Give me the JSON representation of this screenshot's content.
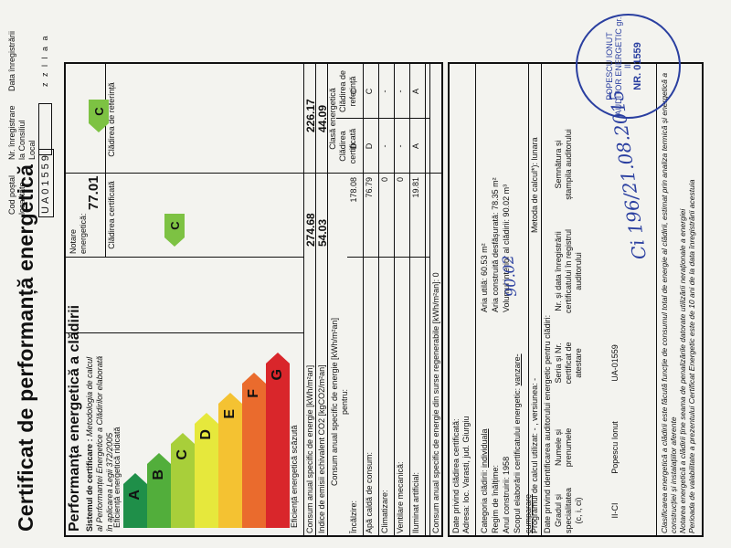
{
  "doc": {
    "title": "Certificat de performanță energetică"
  },
  "header": {
    "postal_code_label": "Cod poștal localitate",
    "registration_number_label": "Nr. înregistrare la Consiliul Local",
    "registration_date_label": "Data înregistrării",
    "postal_code_value": "UA01559",
    "date_format": "z z l l a a"
  },
  "performance": {
    "title": "Performanța energetică a clădirii",
    "system_label": "Sistemul de certificare :",
    "system_text": "Metodologia de calcul al Performanței Energetice a Clădirilor elaborată în aplicarea Legii 372/2005",
    "high_efficiency": "Eficiență energetică ridicată",
    "low_efficiency": "Eficiență energetică scăzută",
    "grade_label": "Notare energetică:",
    "grade_value": "77.01",
    "certified_col": "Clădirea certificată",
    "reference_col": "Clădirea de referință",
    "certified_class": "C",
    "reference_class": "C",
    "consumption_label": "Consum anual specific de energie  [kWh/m²an]",
    "consumption_cert": "274.68",
    "consumption_ref": "226.17",
    "co2_label": "Indice de emisii echivalent CO2    [kgCO2/m²an]",
    "co2_cert": "54.03",
    "co2_ref": "44.09",
    "classes": [
      {
        "letter": "A",
        "color": "#1f8f49"
      },
      {
        "letter": "B",
        "color": "#52ae3b"
      },
      {
        "letter": "C",
        "color": "#a8cf3a"
      },
      {
        "letter": "D",
        "color": "#e6e83c"
      },
      {
        "letter": "E",
        "color": "#f4c232"
      },
      {
        "letter": "F",
        "color": "#ea6b2d"
      },
      {
        "letter": "G",
        "color": "#d9262b"
      }
    ]
  },
  "consumption_table": {
    "title": "Consum anual specific de energie [kWh/m²an] pentru:",
    "class_header": "Clasă energetică",
    "class_cert": "Clădirea certificată",
    "class_ref": "Clădirea de referință",
    "rows": [
      {
        "label": "Încălzire:",
        "value": "178.08",
        "cert": "D",
        "ref": "C"
      },
      {
        "label": "Apă caldă de consum:",
        "value": "76.79",
        "cert": "D",
        "ref": "C"
      },
      {
        "label": "Climatizare:",
        "value": "0",
        "cert": "-",
        "ref": "-"
      },
      {
        "label": "Ventilare mecanică:",
        "value": "0",
        "cert": "-",
        "ref": "-"
      },
      {
        "label": "Iluminat artificial:",
        "value": "19.81",
        "cert": "A",
        "ref": "A"
      }
    ],
    "renewable_label": "Consum anual specific de energie din surse regenerabile  [kWh/m²an]:  0"
  },
  "building": {
    "title": "Date privind clădirea certificată:",
    "address_label": "Adresa:",
    "address_value": "loc. Varasti, jud. Giurgiu",
    "category_label": "Categoria clădirii: ",
    "category_value": "individuala",
    "height_label": "Regim de înălțime:",
    "year_label": "Anul construirii:",
    "year_value": "1958",
    "scope_label": "Scopul elaborării certificatului energetic: ",
    "scope_value": "vanzare-cumparare",
    "useful_area_label": "Aria utilă:",
    "useful_area_value": "60.53 m²",
    "built_area_label": "Aria construită desfășurată:",
    "built_area_value": "78.35 m²",
    "volume_label": "Volumul interior al clădirii:",
    "volume_value": "90.02 m³",
    "program_label": "Programul de calcul utilizat:",
    "program_value": "-",
    "version_label": ", versiunea: -",
    "method_label": "Metoda de calcul*):",
    "method_value": "lunara"
  },
  "auditor": {
    "title": "Date privind identificarea auditorului energetic pentru clădiri:",
    "degree_header": "Gradul și specialitatea (c, i, ci)",
    "name_header": "Numele și prenumele",
    "series_header": "Seria și Nr. certificat de atestare",
    "register_header": "Nr. și data înregistrării certificatului în registrul auditorului",
    "signature_header": "Semnătura și ștampila auditorului",
    "degree_value": "II-CI",
    "name_value": "Popescu Ionut",
    "series_value": "UA-01559"
  },
  "footnotes": {
    "n1": "Clasificarea energetică a clădirii este făcută funcție de consumul total de energie al clădirii, estimat prin analiza termică și energetică a construcției și instalațiilor aferente",
    "n2": "Notarea energetică a clădirii ține seama de penalizările datorate utilizării neraționale a energiei",
    "n3": "Perioada de valabilitate a prezentului Certificat Energetic este de 10 ani de la data înregistrării acestuia"
  },
  "handwriting": {
    "reg": "Ci 196/21.08.2015",
    "area": "90.02"
  },
  "stamp": {
    "name": "POPESCU IONUT",
    "grade": "AUDITOR ENERGETIC gr. II",
    "number": "NR. 01559"
  }
}
